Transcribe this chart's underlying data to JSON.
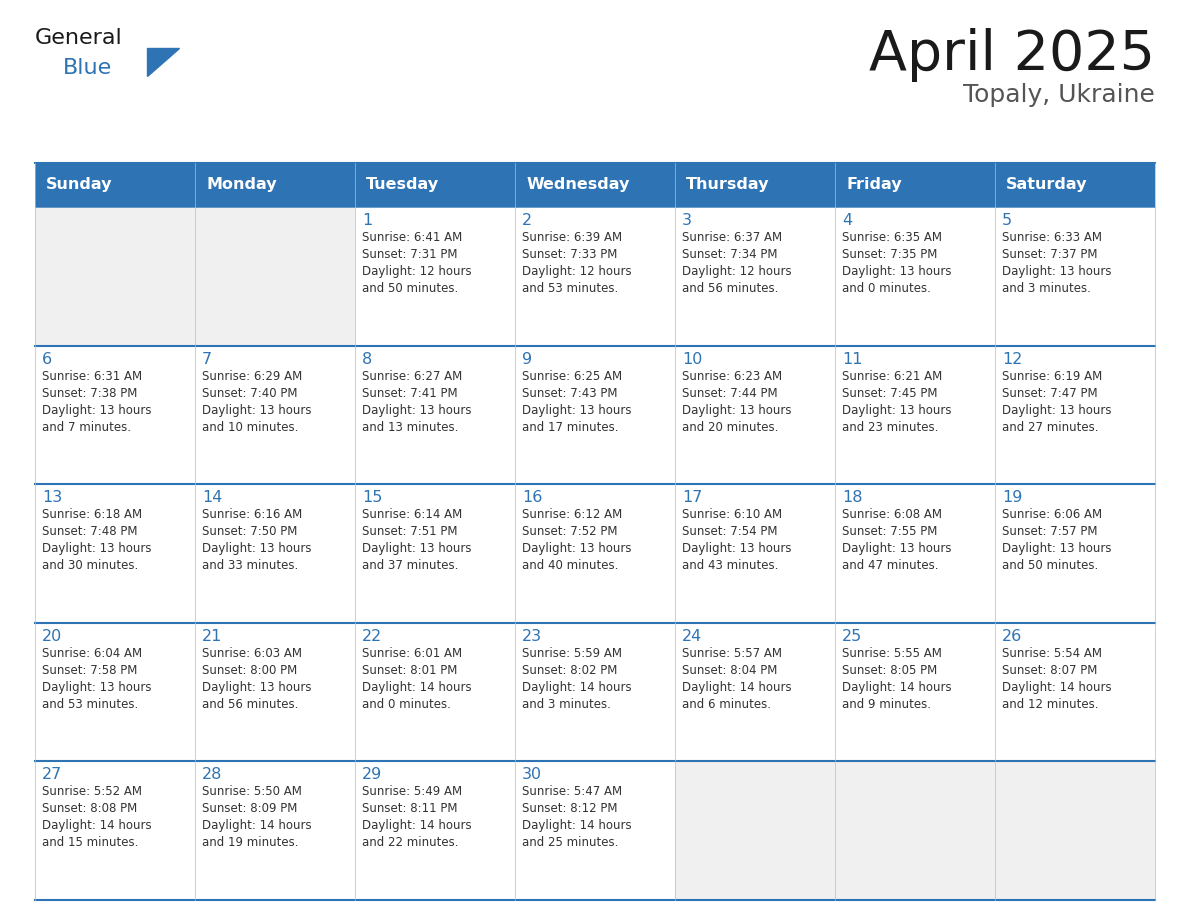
{
  "title": "April 2025",
  "subtitle": "Topaly, Ukraine",
  "header_color": "#2E74B5",
  "header_text_color": "#FFFFFF",
  "cell_bg_white": "#FFFFFF",
  "cell_bg_light": "#F0F4F8",
  "border_color_blue": "#2E74B5",
  "border_color_light": "#BBBBBB",
  "title_color": "#1a1a1a",
  "subtitle_color": "#555555",
  "number_color": "#2E74B5",
  "text_color": "#333333",
  "logo_general_color": "#1a1a1a",
  "logo_blue_color": "#2E74B5",
  "day_names": [
    "Sunday",
    "Monday",
    "Tuesday",
    "Wednesday",
    "Thursday",
    "Friday",
    "Saturday"
  ],
  "weeks": [
    [
      {
        "day": null,
        "info": ""
      },
      {
        "day": null,
        "info": ""
      },
      {
        "day": 1,
        "info": "Sunrise: 6:41 AM\nSunset: 7:31 PM\nDaylight: 12 hours\nand 50 minutes."
      },
      {
        "day": 2,
        "info": "Sunrise: 6:39 AM\nSunset: 7:33 PM\nDaylight: 12 hours\nand 53 minutes."
      },
      {
        "day": 3,
        "info": "Sunrise: 6:37 AM\nSunset: 7:34 PM\nDaylight: 12 hours\nand 56 minutes."
      },
      {
        "day": 4,
        "info": "Sunrise: 6:35 AM\nSunset: 7:35 PM\nDaylight: 13 hours\nand 0 minutes."
      },
      {
        "day": 5,
        "info": "Sunrise: 6:33 AM\nSunset: 7:37 PM\nDaylight: 13 hours\nand 3 minutes."
      }
    ],
    [
      {
        "day": 6,
        "info": "Sunrise: 6:31 AM\nSunset: 7:38 PM\nDaylight: 13 hours\nand 7 minutes."
      },
      {
        "day": 7,
        "info": "Sunrise: 6:29 AM\nSunset: 7:40 PM\nDaylight: 13 hours\nand 10 minutes."
      },
      {
        "day": 8,
        "info": "Sunrise: 6:27 AM\nSunset: 7:41 PM\nDaylight: 13 hours\nand 13 minutes."
      },
      {
        "day": 9,
        "info": "Sunrise: 6:25 AM\nSunset: 7:43 PM\nDaylight: 13 hours\nand 17 minutes."
      },
      {
        "day": 10,
        "info": "Sunrise: 6:23 AM\nSunset: 7:44 PM\nDaylight: 13 hours\nand 20 minutes."
      },
      {
        "day": 11,
        "info": "Sunrise: 6:21 AM\nSunset: 7:45 PM\nDaylight: 13 hours\nand 23 minutes."
      },
      {
        "day": 12,
        "info": "Sunrise: 6:19 AM\nSunset: 7:47 PM\nDaylight: 13 hours\nand 27 minutes."
      }
    ],
    [
      {
        "day": 13,
        "info": "Sunrise: 6:18 AM\nSunset: 7:48 PM\nDaylight: 13 hours\nand 30 minutes."
      },
      {
        "day": 14,
        "info": "Sunrise: 6:16 AM\nSunset: 7:50 PM\nDaylight: 13 hours\nand 33 minutes."
      },
      {
        "day": 15,
        "info": "Sunrise: 6:14 AM\nSunset: 7:51 PM\nDaylight: 13 hours\nand 37 minutes."
      },
      {
        "day": 16,
        "info": "Sunrise: 6:12 AM\nSunset: 7:52 PM\nDaylight: 13 hours\nand 40 minutes."
      },
      {
        "day": 17,
        "info": "Sunrise: 6:10 AM\nSunset: 7:54 PM\nDaylight: 13 hours\nand 43 minutes."
      },
      {
        "day": 18,
        "info": "Sunrise: 6:08 AM\nSunset: 7:55 PM\nDaylight: 13 hours\nand 47 minutes."
      },
      {
        "day": 19,
        "info": "Sunrise: 6:06 AM\nSunset: 7:57 PM\nDaylight: 13 hours\nand 50 minutes."
      }
    ],
    [
      {
        "day": 20,
        "info": "Sunrise: 6:04 AM\nSunset: 7:58 PM\nDaylight: 13 hours\nand 53 minutes."
      },
      {
        "day": 21,
        "info": "Sunrise: 6:03 AM\nSunset: 8:00 PM\nDaylight: 13 hours\nand 56 minutes."
      },
      {
        "day": 22,
        "info": "Sunrise: 6:01 AM\nSunset: 8:01 PM\nDaylight: 14 hours\nand 0 minutes."
      },
      {
        "day": 23,
        "info": "Sunrise: 5:59 AM\nSunset: 8:02 PM\nDaylight: 14 hours\nand 3 minutes."
      },
      {
        "day": 24,
        "info": "Sunrise: 5:57 AM\nSunset: 8:04 PM\nDaylight: 14 hours\nand 6 minutes."
      },
      {
        "day": 25,
        "info": "Sunrise: 5:55 AM\nSunset: 8:05 PM\nDaylight: 14 hours\nand 9 minutes."
      },
      {
        "day": 26,
        "info": "Sunrise: 5:54 AM\nSunset: 8:07 PM\nDaylight: 14 hours\nand 12 minutes."
      }
    ],
    [
      {
        "day": 27,
        "info": "Sunrise: 5:52 AM\nSunset: 8:08 PM\nDaylight: 14 hours\nand 15 minutes."
      },
      {
        "day": 28,
        "info": "Sunrise: 5:50 AM\nSunset: 8:09 PM\nDaylight: 14 hours\nand 19 minutes."
      },
      {
        "day": 29,
        "info": "Sunrise: 5:49 AM\nSunset: 8:11 PM\nDaylight: 14 hours\nand 22 minutes."
      },
      {
        "day": 30,
        "info": "Sunrise: 5:47 AM\nSunset: 8:12 PM\nDaylight: 14 hours\nand 25 minutes."
      },
      {
        "day": null,
        "info": ""
      },
      {
        "day": null,
        "info": ""
      },
      {
        "day": null,
        "info": ""
      }
    ]
  ]
}
